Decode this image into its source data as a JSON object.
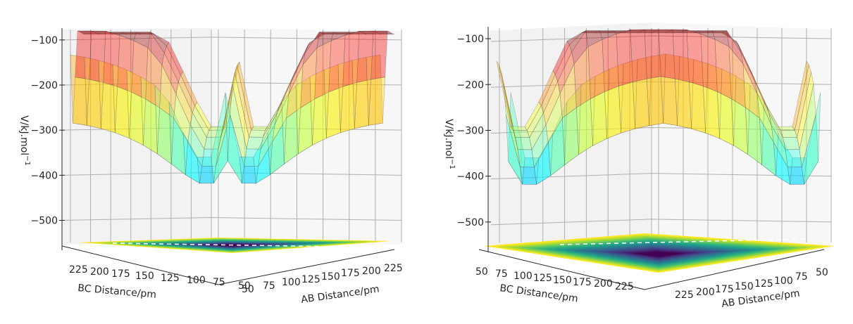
{
  "figure": {
    "description": "Two views of a 3D potential energy surface (translucent jet-colored surface) with a viridis filled contour projected on the floor"
  },
  "chart_data": [
    {
      "type": "surface3d",
      "panel": "left",
      "title": "",
      "xlabel": "AB Distance/pm",
      "ylabel": "BC Distance/pm",
      "zlabel": "V/kJ.mol⁻¹",
      "zlabel_display": "V/kJ.mol",
      "zlabel_sup": "−1",
      "x_ticks": [
        "50",
        "75",
        "100",
        "125",
        "150",
        "175",
        "200",
        "225"
      ],
      "y_ticks": [
        "225",
        "200",
        "175",
        "150",
        "125",
        "100",
        "75",
        "50"
      ],
      "z_ticks": [
        "−100",
        "−200",
        "−300",
        "−400",
        "−500"
      ],
      "x_range": [
        50,
        230
      ],
      "y_range": [
        50,
        230
      ],
      "zlim": [
        -560,
        -80
      ],
      "z_tick_values": [
        -100,
        -200,
        -300,
        -400,
        -500
      ],
      "surface_colormap": "jet",
      "contour_colormap": "viridis",
      "surface_alpha": 0.4,
      "grid": true,
      "view": "looking along AB axis, BC decreasing to the right"
    },
    {
      "type": "surface3d",
      "panel": "right",
      "title": "",
      "xlabel": "AB Distance/pm",
      "ylabel": "BC Distance/pm",
      "zlabel": "V/kJ.mol⁻¹",
      "zlabel_display": "V/kJ.mol",
      "zlabel_sup": "−1",
      "x_ticks": [
        "225",
        "200",
        "175",
        "150",
        "125",
        "100",
        "75",
        "50"
      ],
      "y_ticks": [
        "50",
        "75",
        "100",
        "125",
        "150",
        "175",
        "200",
        "225"
      ],
      "z_ticks": [
        "−100",
        "−200",
        "−300",
        "−400",
        "−500"
      ],
      "x_range": [
        50,
        230
      ],
      "y_range": [
        50,
        230
      ],
      "zlim": [
        -560,
        -80
      ],
      "z_tick_values": [
        -100,
        -200,
        -300,
        -400,
        -500
      ],
      "surface_colormap": "jet",
      "contour_colormap": "viridis",
      "surface_alpha": 0.4,
      "grid": true,
      "view": "rotated view, BC increasing to the right, AB decreasing to the right"
    }
  ],
  "colors": {
    "pane": "#f2f2f2",
    "grid": "#b0b0b0",
    "axis": "#262626",
    "mesh": "#404040"
  }
}
